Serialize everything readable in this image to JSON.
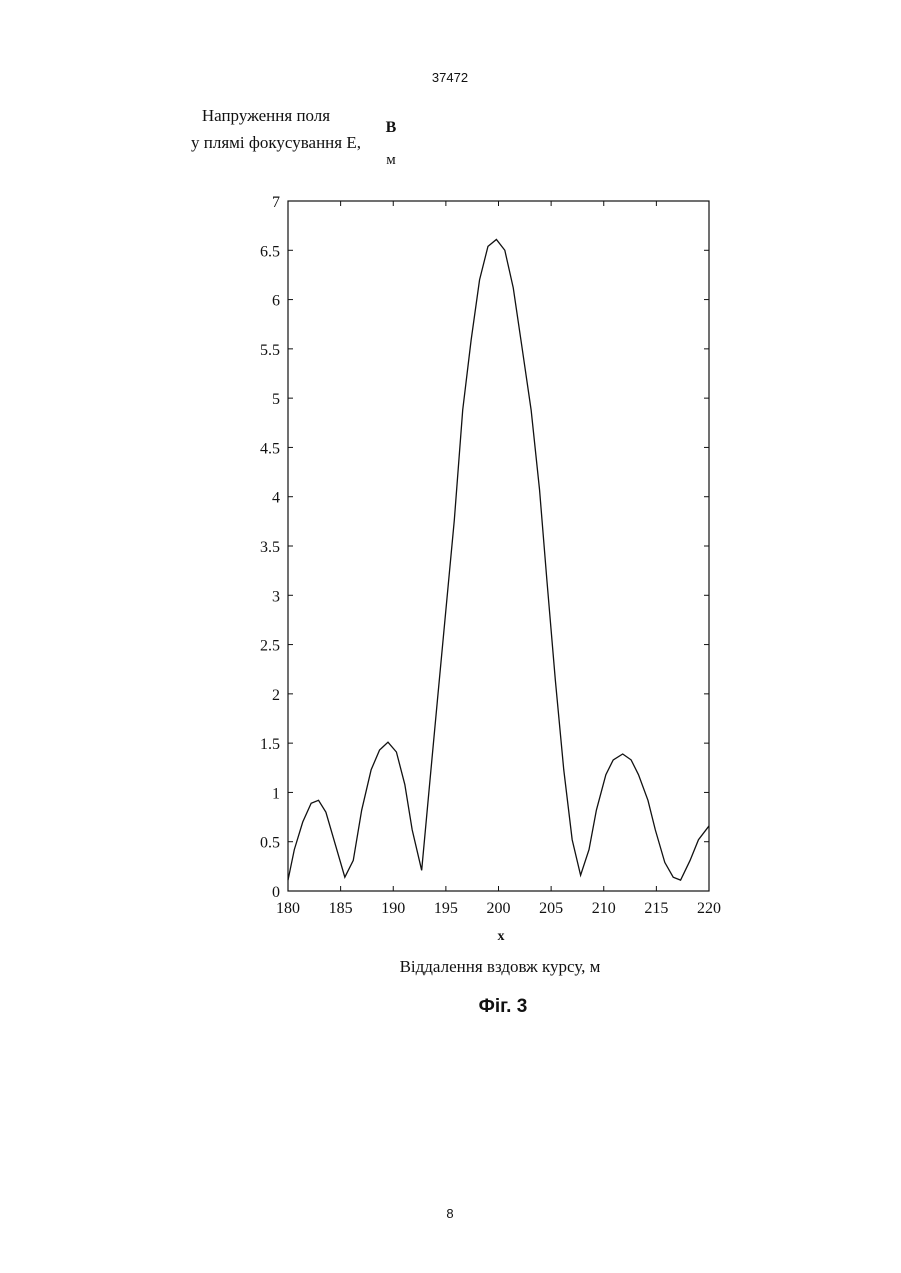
{
  "header": "37472",
  "caption": "Фіг. 3",
  "page_number": "8",
  "chart_data": {
    "type": "line",
    "ylabel": [
      "Напруження поля",
      "у плямі фокусування E,"
    ],
    "ylabel_unit": [
      "В",
      "м"
    ],
    "xlabel_var": "x",
    "xlabel": "Віддалення вздовж курсу, м",
    "color": "#111111",
    "x": [
      180,
      180.6,
      181.4,
      182.2,
      182.9,
      183.6,
      184.5,
      185.4,
      186.2,
      187.0,
      187.9,
      188.7,
      189.5,
      190.3,
      191.1,
      191.8,
      192.7,
      193.4,
      194.2,
      195.0,
      195.8,
      196.6,
      197.4,
      198.2,
      199.0,
      199.8,
      200.6,
      201.4,
      202.2,
      203.1,
      203.9,
      204.6,
      205.4,
      206.2,
      207.0,
      207.8,
      208.6,
      209.3,
      210.2,
      210.9,
      211.8,
      212.6,
      213.3,
      214.2,
      214.9,
      215.8,
      216.6,
      217.3,
      218.2,
      219.0,
      220.0
    ],
    "values": [
      0.11,
      0.42,
      0.7,
      0.89,
      0.92,
      0.8,
      0.47,
      0.14,
      0.31,
      0.82,
      1.23,
      1.43,
      1.51,
      1.41,
      1.08,
      0.62,
      0.21,
      1.02,
      1.94,
      2.85,
      3.76,
      4.88,
      5.59,
      6.2,
      6.54,
      6.61,
      6.5,
      6.12,
      5.54,
      4.88,
      4.07,
      3.15,
      2.14,
      1.23,
      0.52,
      0.16,
      0.42,
      0.82,
      1.18,
      1.33,
      1.39,
      1.33,
      1.18,
      0.92,
      0.62,
      0.29,
      0.14,
      0.11,
      0.31,
      0.52,
      0.66
    ],
    "xlim": [
      180,
      220
    ],
    "xticks": [
      180,
      185,
      190,
      195,
      200,
      205,
      210,
      215,
      220
    ],
    "ylim": [
      0,
      7
    ],
    "yticks": [
      0,
      0.5,
      1,
      1.5,
      2,
      2.5,
      3,
      3.5,
      4,
      4.5,
      5,
      5.5,
      6,
      6.5,
      7
    ],
    "grid": false
  }
}
